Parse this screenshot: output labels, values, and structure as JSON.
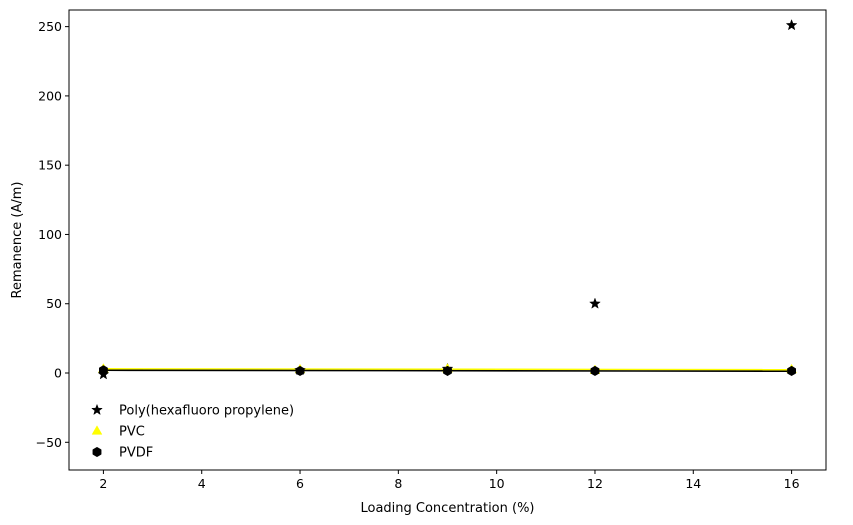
{
  "chart_data": {
    "type": "scatter",
    "title": "",
    "xlabel": "Loading Concentration (%)",
    "ylabel": "Remanence (A/m)",
    "xlim": [
      1.3,
      16.7
    ],
    "ylim": [
      -70,
      262
    ],
    "xticks": [
      2,
      4,
      6,
      8,
      10,
      12,
      14,
      16
    ],
    "yticks": [
      -50,
      0,
      50,
      100,
      150,
      200,
      250
    ],
    "grid": false,
    "legend_position": "lower-left",
    "series": [
      {
        "name": "Poly(hexafluoro propylene)",
        "marker": "star",
        "color": "#000000",
        "x": [
          2,
          6,
          9,
          12,
          16
        ],
        "y": [
          -1,
          2,
          3,
          50,
          251
        ],
        "fit_line": null
      },
      {
        "name": "PVC",
        "marker": "triangle",
        "color": "#ffff00",
        "x": [
          2,
          6,
          9,
          12,
          16
        ],
        "y": [
          3,
          2.5,
          3,
          2,
          2.5
        ],
        "fit_line": {
          "color": "#ffff00",
          "y_start": 3.0,
          "y_end": 2.4
        }
      },
      {
        "name": "PVDF",
        "marker": "hexagon",
        "color": "#000000",
        "x": [
          2,
          6,
          9,
          12,
          16
        ],
        "y": [
          2,
          1.5,
          1.5,
          1.5,
          1.5
        ],
        "fit_line": {
          "color": "#000000",
          "y_start": 2.0,
          "y_end": 1.3
        }
      }
    ]
  }
}
